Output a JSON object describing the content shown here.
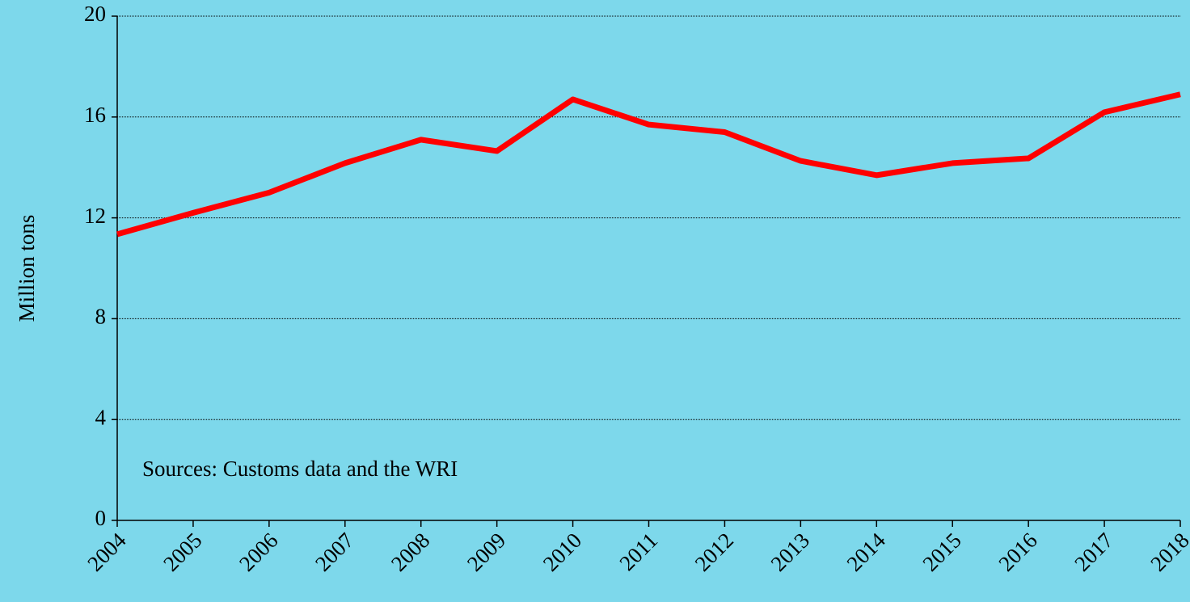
{
  "chart_data": {
    "type": "line",
    "y_label": "Million tons",
    "annotation": "Sources: Customs data and the WRI",
    "x": [
      2004,
      2005,
      2006,
      2007,
      2008,
      2009,
      2010,
      2011,
      2012,
      2013,
      2014,
      2015,
      2016,
      2017,
      2018
    ],
    "series": [
      {
        "color": "#ff0000",
        "values": [
          11.35,
          12.2,
          13.0,
          14.17,
          15.1,
          14.65,
          16.7,
          15.7,
          15.4,
          14.26,
          13.69,
          14.17,
          14.36,
          16.19,
          16.9
        ]
      }
    ],
    "xlim": [
      2004,
      2018
    ],
    "xticks": [
      2004,
      2005,
      2006,
      2007,
      2008,
      2009,
      2010,
      2011,
      2012,
      2013,
      2014,
      2015,
      2016,
      2017,
      2018
    ],
    "ylim": [
      0,
      20
    ],
    "yticks": [
      0,
      4,
      8,
      12,
      16,
      20
    ],
    "grid": true,
    "background": "#7dd8eb"
  }
}
